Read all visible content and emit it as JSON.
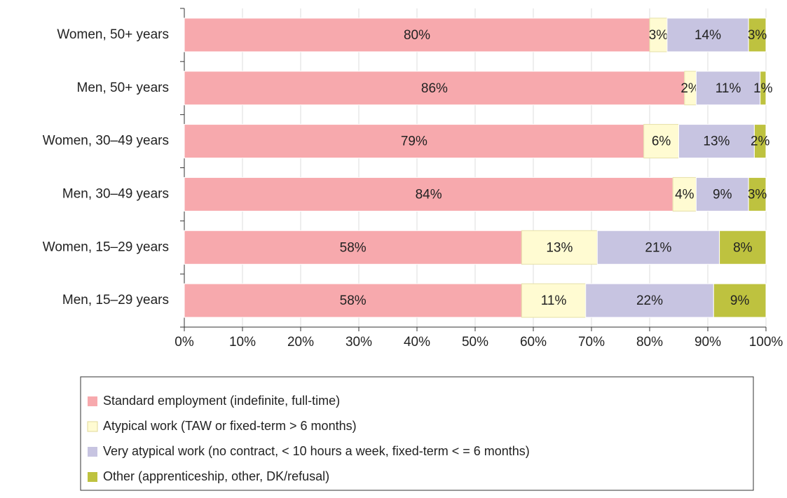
{
  "chart_data": {
    "type": "stacked-bar-horizontal",
    "categories": [
      "Women, 50+ years",
      "Men, 50+ years",
      "Women, 30–49 years",
      "Men, 30–49 years",
      "Women, 15–29 years",
      "Men, 15–29 years"
    ],
    "series": [
      {
        "name": "Standard employment (indefinite, full-time)",
        "color": "#f7a9ad",
        "values": [
          80,
          86,
          79,
          84,
          58,
          58
        ],
        "value_labels": [
          "80%",
          "86%",
          "79%",
          "84%",
          "58%",
          "58%"
        ]
      },
      {
        "name": "Atypical work (TAW or fixed-term > 6 months)",
        "color": "#fffbd2",
        "values": [
          3,
          2,
          6,
          4,
          13,
          11
        ],
        "value_labels": [
          "3%",
          "2%",
          "6%",
          "4%",
          "13%",
          "11%"
        ]
      },
      {
        "name": "Very atypical work (no contract, < 10 hours a week, fixed-term < = 6 months)",
        "color": "#c7c4e1",
        "values": [
          14,
          11,
          13,
          9,
          21,
          22
        ],
        "value_labels": [
          "14%",
          "11%",
          "13%",
          "9%",
          "21%",
          "22%"
        ]
      },
      {
        "name": "Other (apprenticeship, other, DK/refusal)",
        "color": "#bec23f",
        "values": [
          3,
          1,
          2,
          3,
          8,
          9
        ],
        "value_labels": [
          "3%",
          "1%",
          "2%",
          "3%",
          "8%",
          "9%"
        ]
      }
    ],
    "xlim": [
      0,
      100
    ],
    "xticks": [
      {
        "value": 0,
        "label": "0%"
      },
      {
        "value": 10,
        "label": "10%"
      },
      {
        "value": 20,
        "label": "20%"
      },
      {
        "value": 30,
        "label": "30%"
      },
      {
        "value": 40,
        "label": "40%"
      },
      {
        "value": 50,
        "label": "50%"
      },
      {
        "value": 60,
        "label": "60%"
      },
      {
        "value": 70,
        "label": "70%"
      },
      {
        "value": 80,
        "label": "80%"
      },
      {
        "value": 90,
        "label": "90%"
      },
      {
        "value": 100,
        "label": "100%"
      }
    ],
    "grid": true
  }
}
